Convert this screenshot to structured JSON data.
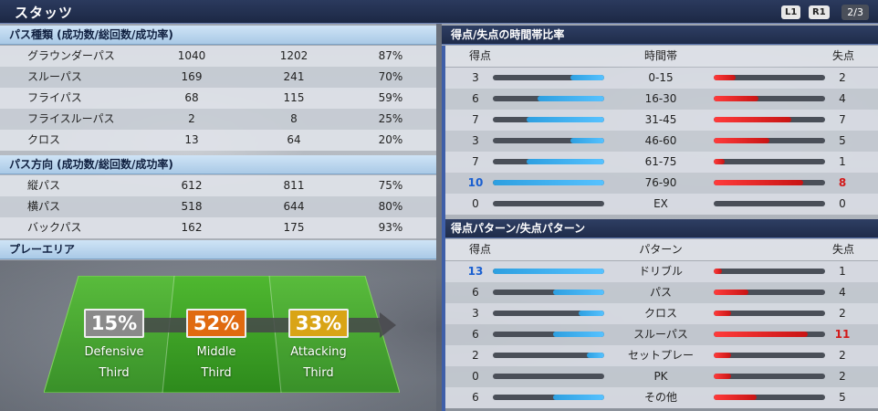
{
  "header": {
    "title": "スタッツ",
    "l1": "L1",
    "r1": "R1",
    "page": "2/3"
  },
  "pass_types": {
    "title": "パス種類 (成功数/総回数/成功率)",
    "rows": [
      {
        "name": "グラウンダーパス",
        "success": "1040",
        "total": "1202",
        "rate": "87%"
      },
      {
        "name": "スルーパス",
        "success": "169",
        "total": "241",
        "rate": "70%"
      },
      {
        "name": "フライパス",
        "success": "68",
        "total": "115",
        "rate": "59%"
      },
      {
        "name": "フライスルーパス",
        "success": "2",
        "total": "8",
        "rate": "25%"
      },
      {
        "name": "クロス",
        "success": "13",
        "total": "64",
        "rate": "20%"
      }
    ]
  },
  "pass_direction": {
    "title": "パス方向 (成功数/総回数/成功率)",
    "rows": [
      {
        "name": "縦パス",
        "success": "612",
        "total": "811",
        "rate": "75%"
      },
      {
        "name": "横パス",
        "success": "518",
        "total": "644",
        "rate": "80%"
      },
      {
        "name": "バックパス",
        "success": "162",
        "total": "175",
        "rate": "93%"
      }
    ]
  },
  "play_area": {
    "title": "プレーエリア",
    "zones": [
      {
        "pct": "15%",
        "line1": "Defensive",
        "line2": "Third",
        "color": "#8a8a8a"
      },
      {
        "pct": "52%",
        "line1": "Middle",
        "line2": "Third",
        "color": "#e06a10"
      },
      {
        "pct": "33%",
        "line1": "Attacking",
        "line2": "Third",
        "color": "#d9a416"
      }
    ]
  },
  "time_ratio": {
    "title": "得点/失点の時間帯比率",
    "col_scored": "得点",
    "col_label": "時間帯",
    "col_conceded": "失点",
    "max": 10,
    "rows": [
      {
        "label": "0-15",
        "scored": 3,
        "conceded": 2
      },
      {
        "label": "16-30",
        "scored": 6,
        "conceded": 4
      },
      {
        "label": "31-45",
        "scored": 7,
        "conceded": 7
      },
      {
        "label": "46-60",
        "scored": 3,
        "conceded": 5
      },
      {
        "label": "61-75",
        "scored": 7,
        "conceded": 1
      },
      {
        "label": "76-90",
        "scored": 10,
        "conceded": 8,
        "highlight": true
      },
      {
        "label": "EX",
        "scored": 0,
        "conceded": 0
      }
    ]
  },
  "patterns": {
    "title": "得点パターン/失点パターン",
    "col_scored": "得点",
    "col_label": "パターン",
    "col_conceded": "失点",
    "max": 13,
    "rows": [
      {
        "label": "ドリブル",
        "scored": 13,
        "conceded": 1,
        "hi_scored": true
      },
      {
        "label": "パス",
        "scored": 6,
        "conceded": 4
      },
      {
        "label": "クロス",
        "scored": 3,
        "conceded": 2
      },
      {
        "label": "スルーパス",
        "scored": 6,
        "conceded": 11,
        "hi_conceded": true
      },
      {
        "label": "セットプレー",
        "scored": 2,
        "conceded": 2
      },
      {
        "label": "PK",
        "scored": 0,
        "conceded": 2
      },
      {
        "label": "その他",
        "scored": 6,
        "conceded": 5
      }
    ]
  }
}
